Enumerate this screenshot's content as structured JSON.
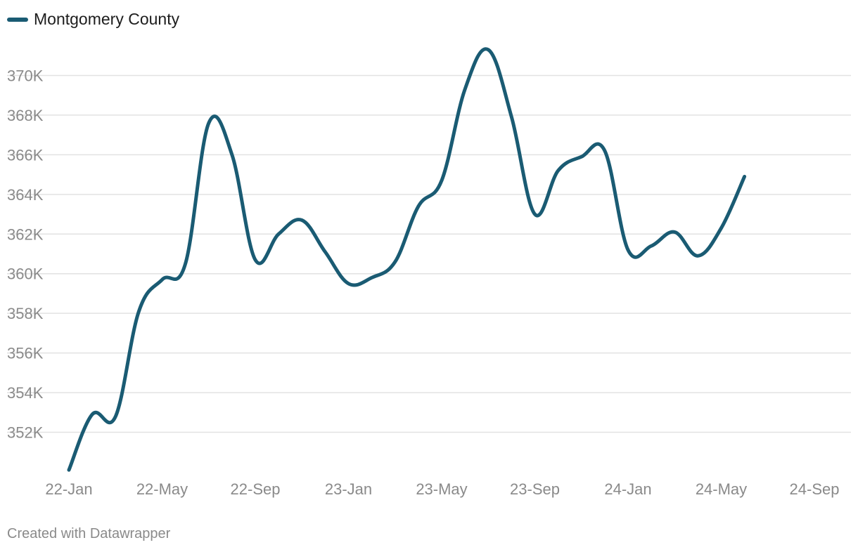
{
  "legend": {
    "label": "Montgomery County",
    "color": "#1a5b73"
  },
  "footer": {
    "credit": "Created with Datawrapper"
  },
  "chart_data": {
    "type": "line",
    "title": "",
    "xlabel": "",
    "ylabel": "",
    "x_ticks": [
      "22-Jan",
      "22-May",
      "22-Sep",
      "23-Jan",
      "23-May",
      "23-Sep",
      "24-Jan",
      "24-May",
      "24-Sep"
    ],
    "x_tick_dates": [
      "2022-01",
      "2022-05",
      "2022-09",
      "2023-01",
      "2023-05",
      "2023-09",
      "2024-01",
      "2024-05",
      "2024-09"
    ],
    "y_ticks": [
      352000,
      354000,
      356000,
      358000,
      360000,
      362000,
      364000,
      366000,
      368000,
      370000
    ],
    "y_tick_labels": [
      "352K",
      "354K",
      "356K",
      "358K",
      "360K",
      "362K",
      "364K",
      "366K",
      "368K",
      "370K"
    ],
    "xlim": [
      "2022-01",
      "2024-09"
    ],
    "ylim": [
      350000,
      372000
    ],
    "grid": true,
    "legend_position": "top-left",
    "series": [
      {
        "name": "Montgomery County",
        "color": "#1a5b73",
        "x": [
          "2022-01",
          "2022-02",
          "2022-03",
          "2022-04",
          "2022-05",
          "2022-06",
          "2022-07",
          "2022-08",
          "2022-09",
          "2022-10",
          "2022-11",
          "2022-12",
          "2023-01",
          "2023-02",
          "2023-03",
          "2023-04",
          "2023-05",
          "2023-06",
          "2023-07",
          "2023-08",
          "2023-09",
          "2023-10",
          "2023-11",
          "2023-12",
          "2024-01",
          "2024-02",
          "2024-03",
          "2024-04",
          "2024-05",
          "2024-06"
        ],
        "values": [
          350100,
          352900,
          352800,
          358100,
          359700,
          360500,
          367600,
          366000,
          360700,
          362000,
          362700,
          361100,
          359500,
          359800,
          360600,
          363400,
          364700,
          369300,
          371300,
          367900,
          363000,
          365200,
          365900,
          366200,
          361200,
          361400,
          362100,
          360900,
          362300,
          364900
        ]
      }
    ]
  }
}
